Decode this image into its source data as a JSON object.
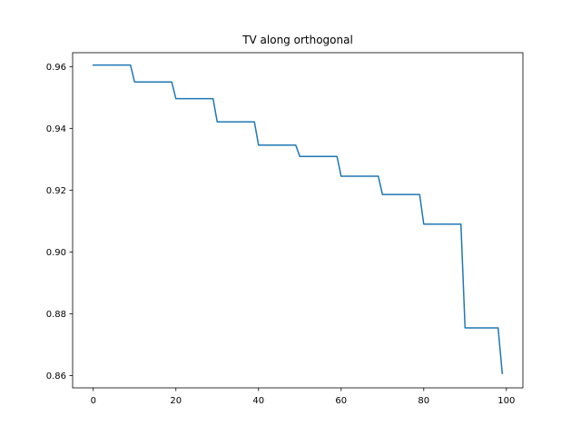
{
  "chart_data": {
    "type": "line",
    "title": "TV along orthogonal",
    "xlabel": "",
    "ylabel": "",
    "xlim": [
      -5,
      104
    ],
    "ylim": [
      0.856,
      0.9645
    ],
    "grid": false,
    "legend": "none",
    "x_ticks": [
      0,
      20,
      40,
      60,
      80,
      100
    ],
    "x_tick_labels": [
      "0",
      "20",
      "40",
      "60",
      "80",
      "100"
    ],
    "y_ticks": [
      0.86,
      0.88,
      0.9,
      0.92,
      0.94,
      0.96
    ],
    "y_tick_labels": [
      "0.86",
      "0.88",
      "0.90",
      "0.92",
      "0.94",
      "0.96"
    ],
    "series": [
      {
        "color": "#1f77b4",
        "x": [
          0,
          9,
          10,
          19,
          20,
          29,
          30,
          39,
          40,
          49,
          50,
          59,
          60,
          69,
          70,
          79,
          80,
          89,
          90,
          98,
          99
        ],
        "y": [
          0.9605,
          0.9605,
          0.955,
          0.955,
          0.9496,
          0.9496,
          0.9421,
          0.9421,
          0.9346,
          0.9346,
          0.9309,
          0.9309,
          0.9245,
          0.9245,
          0.9186,
          0.9186,
          0.909,
          0.909,
          0.8754,
          0.8754,
          0.8607
        ]
      }
    ]
  }
}
